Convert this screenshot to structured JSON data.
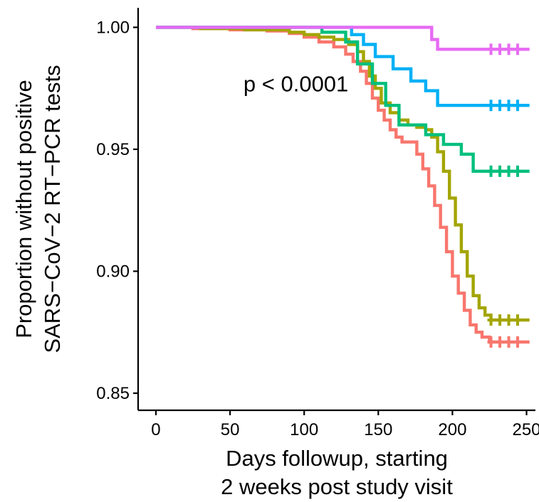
{
  "chart_data": {
    "type": "line",
    "step": true,
    "xlabel": [
      "Days followup, starting",
      "2 weeks post study visit"
    ],
    "ylabel": [
      "Proportion without positive",
      "SARS−CoV−2 RT−PCR tests"
    ],
    "xlim": [
      -12,
      256
    ],
    "ylim": [
      0.843,
      1.008
    ],
    "x_ticks": [
      0,
      50,
      100,
      150,
      200,
      250
    ],
    "x_tick_labels": [
      "0",
      "50",
      "100",
      "150",
      "200",
      "250"
    ],
    "y_ticks": [
      0.85,
      0.9,
      0.95,
      1.0
    ],
    "y_tick_labels": [
      "0.85",
      "0.90",
      "0.95",
      "1.00"
    ],
    "grid": false,
    "legend": "none",
    "annotations": [
      {
        "text": "p < 0.0001",
        "x": 60,
        "y": 0.977
      }
    ],
    "series": [
      {
        "color": "#F8766D",
        "points": [
          [
            0,
            1.0
          ],
          [
            25,
            0.9995
          ],
          [
            50,
            0.999
          ],
          [
            75,
            0.9985
          ],
          [
            90,
            0.9975
          ],
          [
            100,
            0.996
          ],
          [
            110,
            0.994
          ],
          [
            120,
            0.992
          ],
          [
            128,
            0.989
          ],
          [
            133,
            0.986
          ],
          [
            138,
            0.982
          ],
          [
            142,
            0.977
          ],
          [
            146,
            0.971
          ],
          [
            150,
            0.966
          ],
          [
            154,
            0.962
          ],
          [
            158,
            0.958
          ],
          [
            162,
            0.955
          ],
          [
            166,
            0.953
          ],
          [
            172,
            0.953
          ],
          [
            176,
            0.948
          ],
          [
            180,
            0.942
          ],
          [
            184,
            0.935
          ],
          [
            188,
            0.927
          ],
          [
            192,
            0.918
          ],
          [
            196,
            0.908
          ],
          [
            200,
            0.898
          ],
          [
            204,
            0.891
          ],
          [
            208,
            0.884
          ],
          [
            212,
            0.878
          ],
          [
            216,
            0.875
          ],
          [
            220,
            0.873
          ],
          [
            225,
            0.871
          ],
          [
            252,
            0.871
          ]
        ],
        "censor_x": [
          226,
          232,
          238,
          244
        ]
      },
      {
        "color": "#A3A500",
        "points": [
          [
            0,
            1.0
          ],
          [
            30,
            0.9995
          ],
          [
            60,
            0.999
          ],
          [
            90,
            0.998
          ],
          [
            100,
            0.997
          ],
          [
            110,
            0.996
          ],
          [
            120,
            0.995
          ],
          [
            130,
            0.993
          ],
          [
            136,
            0.99
          ],
          [
            140,
            0.986
          ],
          [
            144,
            0.98
          ],
          [
            148,
            0.975
          ],
          [
            152,
            0.969
          ],
          [
            158,
            0.965
          ],
          [
            164,
            0.962
          ],
          [
            170,
            0.96
          ],
          [
            176,
            0.959
          ],
          [
            182,
            0.958
          ],
          [
            186,
            0.955
          ],
          [
            190,
            0.949
          ],
          [
            194,
            0.941
          ],
          [
            198,
            0.93
          ],
          [
            202,
            0.919
          ],
          [
            206,
            0.908
          ],
          [
            210,
            0.898
          ],
          [
            214,
            0.89
          ],
          [
            218,
            0.885
          ],
          [
            222,
            0.882
          ],
          [
            226,
            0.88
          ],
          [
            252,
            0.88
          ]
        ],
        "censor_x": [
          226,
          232,
          238,
          244
        ]
      },
      {
        "color": "#00BF7D",
        "points": [
          [
            0,
            1.0
          ],
          [
            112,
            1.0
          ],
          [
            112,
            0.998
          ],
          [
            128,
            0.998
          ],
          [
            128,
            0.994
          ],
          [
            136,
            0.994
          ],
          [
            136,
            0.985
          ],
          [
            146,
            0.985
          ],
          [
            146,
            0.977
          ],
          [
            155,
            0.977
          ],
          [
            155,
            0.968
          ],
          [
            164,
            0.968
          ],
          [
            164,
            0.96
          ],
          [
            182,
            0.96
          ],
          [
            182,
            0.956
          ],
          [
            194,
            0.956
          ],
          [
            194,
            0.952
          ],
          [
            206,
            0.952
          ],
          [
            206,
            0.948
          ],
          [
            214,
            0.948
          ],
          [
            214,
            0.941
          ],
          [
            252,
            0.941
          ]
        ],
        "censor_x": [
          226,
          232,
          238,
          244
        ]
      },
      {
        "color": "#00B0F6",
        "points": [
          [
            0,
            1.0
          ],
          [
            132,
            1.0
          ],
          [
            132,
            0.997
          ],
          [
            140,
            0.997
          ],
          [
            140,
            0.993
          ],
          [
            148,
            0.993
          ],
          [
            148,
            0.988
          ],
          [
            160,
            0.988
          ],
          [
            160,
            0.983
          ],
          [
            172,
            0.983
          ],
          [
            172,
            0.978
          ],
          [
            182,
            0.978
          ],
          [
            182,
            0.974
          ],
          [
            190,
            0.974
          ],
          [
            190,
            0.968
          ],
          [
            252,
            0.968
          ]
        ],
        "censor_x": [
          226,
          232,
          238,
          244
        ]
      },
      {
        "color": "#E76BF3",
        "points": [
          [
            0,
            1.0
          ],
          [
            186,
            1.0
          ],
          [
            186,
            0.995
          ],
          [
            190,
            0.995
          ],
          [
            190,
            0.991
          ],
          [
            252,
            0.991
          ]
        ],
        "censor_x": [
          226,
          232,
          238,
          244
        ]
      }
    ]
  }
}
